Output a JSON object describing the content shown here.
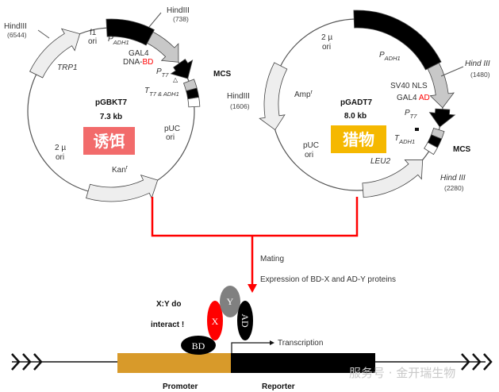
{
  "colors": {
    "bait_box": "#f26b6b",
    "prey_box": "#f5b800",
    "red": "#ff0000",
    "promoter": "#d89a2a",
    "gray_feature": "#c8c8c8",
    "light_feature": "#eeeeee"
  },
  "left_plasmid": {
    "name": "pGBKT7",
    "size": "7.3 kb",
    "tag": "诱饵",
    "hind_a": "HindIII",
    "hind_a_pos": "(6544)",
    "hind_b": "HindIII",
    "hind_b_pos": "(738)",
    "hind_c": "HindIII",
    "hind_c_pos": "(1606)",
    "f1_1": "f1",
    "f1_2": "ori",
    "padh": "P",
    "padh_sub": "ADH1",
    "gal4": "GAL4",
    "dna": "DNA-",
    "bd": "BD",
    "pt7": "P",
    "pt7_sub": "T7",
    "tt7": "T",
    "tt7_sub": "T7 & ADH1",
    "mcs": "MCS",
    "trp1": "TRP1",
    "puc1": "pUC",
    "puc2": "ori",
    "mu1": "2 µ",
    "mu2": "ori",
    "kan": "Kan",
    "kan_sup": "r"
  },
  "right_plasmid": {
    "name": "pGADT7",
    "size": "8.0 kb",
    "tag": "猎物",
    "mu1": "2 µ",
    "mu2": "ori",
    "padh": "P",
    "padh_sub": "ADH1",
    "hind_a": "Hind III",
    "hind_a_pos": "(1480)",
    "sv40": "SV40 NLS",
    "gal4": "GAL4 ",
    "ad": "AD",
    "pt7": "P",
    "pt7_sub": "T7",
    "tadh": "T",
    "tadh_sub": "ADH1",
    "amp": "Amp",
    "amp_sup": "r",
    "puc1": "pUC",
    "puc2": "ori",
    "leu2": "LEU2",
    "mcs": "MCS",
    "hind_b": "Hind III",
    "hind_b_pos": "(2280)"
  },
  "flow": {
    "mating": "Mating",
    "expression": "Expression of BD-X and AD-Y proteins"
  },
  "assay": {
    "xy1": "X:Y do",
    "xy2": "interact !",
    "x": "X",
    "y": "Y",
    "ad": "AD",
    "bd": "BD",
    "transcription": "Transcription",
    "promoter": "Promoter",
    "reporter": "Reporter"
  },
  "watermark": "服务号 · 金开瑞生物"
}
